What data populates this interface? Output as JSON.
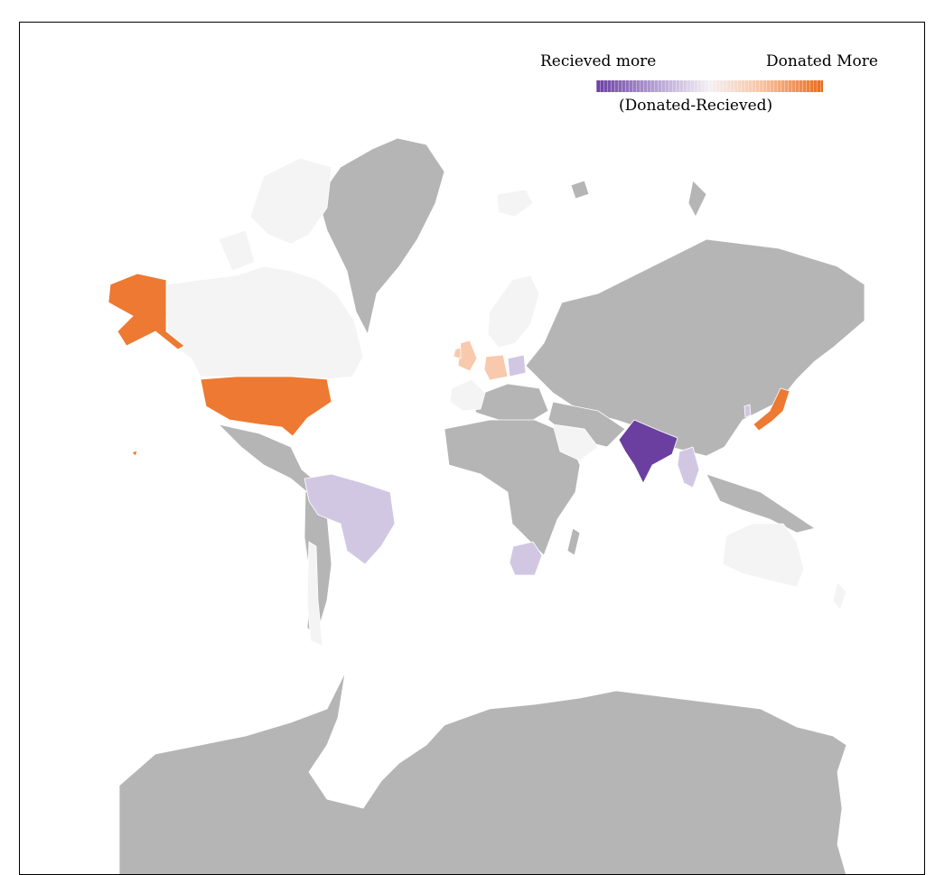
{
  "legend": {
    "low_label": "Recieved more",
    "high_label": "Donated More",
    "caption": "(Donated-Recieved)"
  },
  "colors": {
    "no_data": "#b5b5b5",
    "neutral": "#f4f4f4",
    "donated_strong": "#ed7932",
    "donated_light": "#f8c9ad",
    "received_light": "#d2c7e3",
    "received_strong": "#6a3fa0",
    "border": "#000000"
  },
  "regions": [
    {
      "name": "United States",
      "category": "donated_strong"
    },
    {
      "name": "Alaska",
      "category": "donated_strong"
    },
    {
      "name": "Japan",
      "category": "donated_strong"
    },
    {
      "name": "United Kingdom",
      "category": "donated_light"
    },
    {
      "name": "Germany",
      "category": "donated_light"
    },
    {
      "name": "Poland",
      "category": "received_light"
    },
    {
      "name": "Brazil",
      "category": "received_light"
    },
    {
      "name": "South Africa",
      "category": "received_light"
    },
    {
      "name": "Thailand",
      "category": "received_light"
    },
    {
      "name": "South Korea",
      "category": "received_light"
    },
    {
      "name": "India",
      "category": "received_strong"
    },
    {
      "name": "Canada",
      "category": "neutral"
    },
    {
      "name": "Australia",
      "category": "neutral"
    },
    {
      "name": "Saudi Arabia",
      "category": "neutral"
    },
    {
      "name": "Chile",
      "category": "neutral"
    }
  ]
}
